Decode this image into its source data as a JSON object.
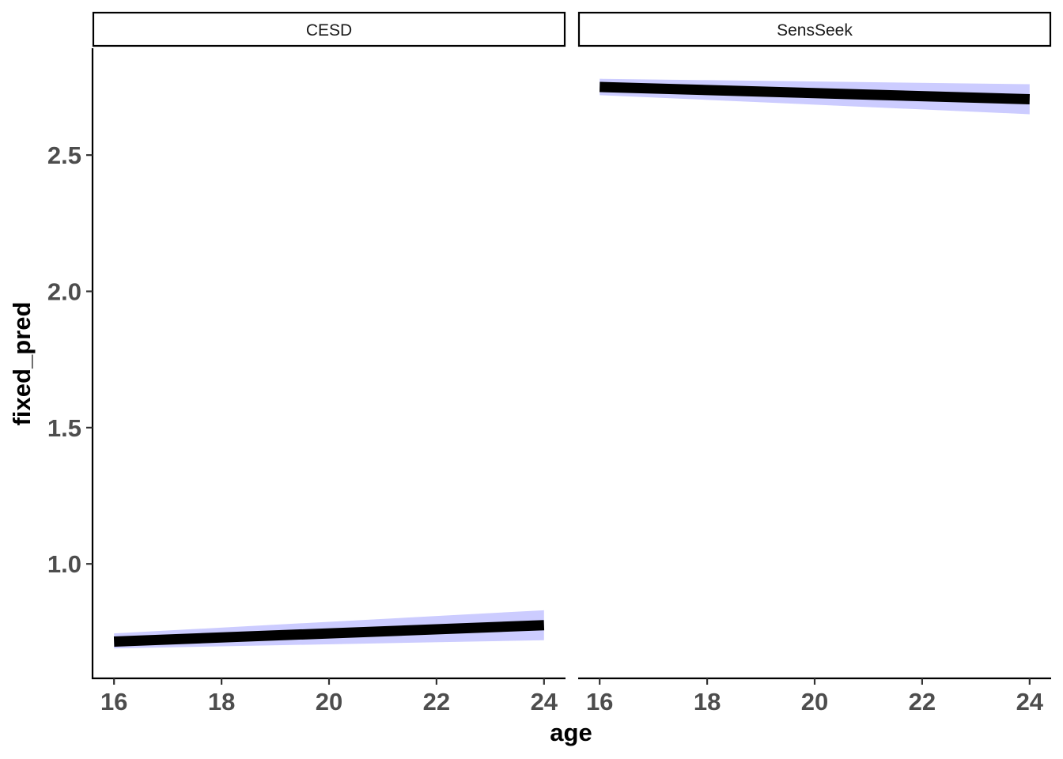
{
  "chart_data": {
    "type": "line",
    "xlabel": "age",
    "ylabel": "fixed_pred",
    "xlim": [
      15.6,
      24.4
    ],
    "ylim": [
      0.58,
      2.895
    ],
    "x_ticks": [
      16,
      18,
      20,
      22,
      24
    ],
    "y_ticks": [
      1.0,
      1.5,
      2.0,
      2.5
    ],
    "y_tick_labels": [
      "1.0",
      "1.5",
      "2.0",
      "2.5"
    ],
    "grid": false,
    "legend": "none",
    "line_color": "#000000",
    "ribbon_color": "#ccccff",
    "panels": [
      {
        "strip": "CESD",
        "x": [
          16,
          24
        ],
        "fit": [
          0.715,
          0.775
        ],
        "lower": [
          0.69,
          0.72
        ],
        "upper": [
          0.745,
          0.83
        ]
      },
      {
        "strip": "SensSeek",
        "x": [
          16,
          24
        ],
        "fit": [
          2.75,
          2.705
        ],
        "lower": [
          2.72,
          2.65
        ],
        "upper": [
          2.78,
          2.76
        ]
      }
    ]
  }
}
